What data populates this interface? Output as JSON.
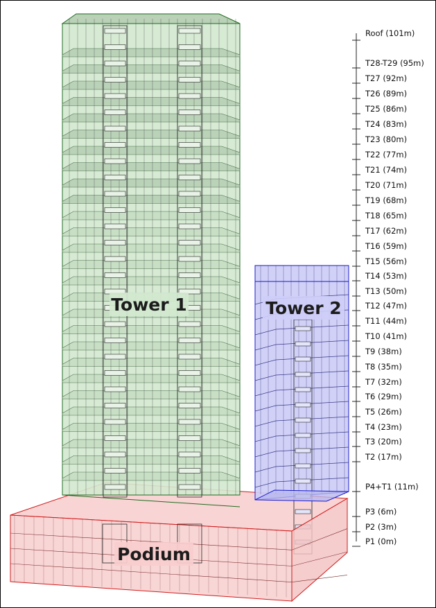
{
  "labels": {
    "tower1": "Tower 1",
    "tower2": "Tower 2",
    "podium": "Podium"
  },
  "levels": [
    {
      "name": "Roof (101m)"
    },
    {
      "name": "T28-T29 (95m)"
    },
    {
      "name": "T27 (92m)"
    },
    {
      "name": "T26 (89m)"
    },
    {
      "name": "T25 (86m)"
    },
    {
      "name": "T24 (83m)"
    },
    {
      "name": "T23 (80m)"
    },
    {
      "name": "T22 (77m)"
    },
    {
      "name": "T21 (74m)"
    },
    {
      "name": "T20 (71m)"
    },
    {
      "name": "T19 (68m)"
    },
    {
      "name": "T18 (65m)"
    },
    {
      "name": "T17 (62m)"
    },
    {
      "name": "T16 (59m)"
    },
    {
      "name": "T15 (56m)"
    },
    {
      "name": "T14 (53m)"
    },
    {
      "name": "T13 (50m)"
    },
    {
      "name": "T12 (47m)"
    },
    {
      "name": "T11 (44m)"
    },
    {
      "name": "T10 (41m)"
    },
    {
      "name": "T9 (38m)"
    },
    {
      "name": "T8 (35m)"
    },
    {
      "name": "T7 (32m)"
    },
    {
      "name": "T6 (29m)"
    },
    {
      "name": "T5 (26m)"
    },
    {
      "name": "T4 (23m)"
    },
    {
      "name": "T3 (20m)"
    },
    {
      "name": "T2 (17m)"
    },
    {
      "name": "P4+T1 (11m)"
    },
    {
      "name": "P3 (6m)"
    },
    {
      "name": "P2 (3m)"
    },
    {
      "name": "P1 (0m)"
    }
  ],
  "colors": {
    "tower1_fill": "#d3e9cf",
    "tower1_slab": "#b3ccb0",
    "tower1_edge": "#1f6b1f",
    "tower2_fill": "#cdcdf7",
    "tower2_edge": "#1a1ad0",
    "podium_fill": "#f8cdcd",
    "podium_edge": "#d11a1a",
    "grid_line": "#333333"
  }
}
